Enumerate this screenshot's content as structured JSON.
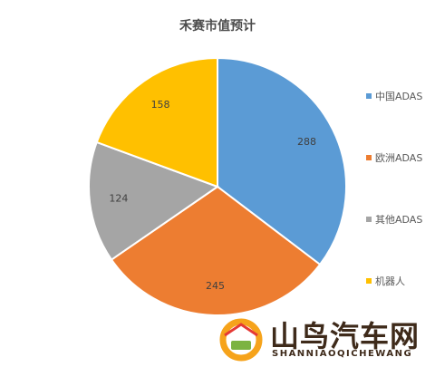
{
  "chart_data": {
    "type": "pie",
    "title": "禾赛市值预计",
    "categories": [
      "中国ADAS",
      "欧洲ADAS",
      "其他ADAS",
      "机器人"
    ],
    "values": [
      288,
      245,
      124,
      158
    ],
    "colors": [
      "#5b9bd5",
      "#ed7d31",
      "#a5a5a5",
      "#ffc000"
    ],
    "legend_position": "right",
    "start_angle": "top",
    "direction": "clockwise"
  },
  "watermark": {
    "name": "山鸟汽车网",
    "subtitle": "SHANNIAOQICHEWANG"
  }
}
